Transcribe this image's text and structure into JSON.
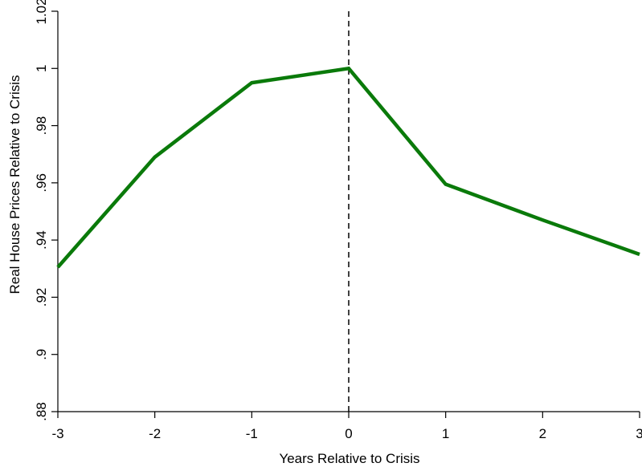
{
  "chart_data": {
    "type": "line",
    "title": "",
    "xlabel": "Years Relative to Crisis",
    "ylabel": "Real House Prices Relative to Crisis",
    "x": [
      -3,
      -2,
      -1,
      0,
      1,
      2,
      3
    ],
    "xlim": [
      -3,
      3
    ],
    "ylim": [
      0.88,
      1.02
    ],
    "x_ticks": [
      -3,
      -2,
      -1,
      0,
      1,
      2,
      3
    ],
    "x_tick_labels": [
      "-3",
      "-2",
      "-1",
      "0",
      "1",
      "2",
      "3"
    ],
    "y_ticks": [
      0.88,
      0.9,
      0.92,
      0.94,
      0.96,
      0.98,
      1,
      1.02
    ],
    "y_tick_labels": [
      ".88",
      ".9",
      ".92",
      ".94",
      ".96",
      ".98",
      "1",
      "1.02"
    ],
    "grid": false,
    "legend": "none",
    "series": [
      {
        "values": [
          0.9305,
          0.969,
          0.995,
          1.0,
          0.9595,
          0.947,
          0.935
        ],
        "color": "#0a7a0a"
      }
    ],
    "reference_lines": [
      {
        "axis": "x",
        "value": 0,
        "style": "dashed",
        "color": "#000000"
      }
    ]
  }
}
